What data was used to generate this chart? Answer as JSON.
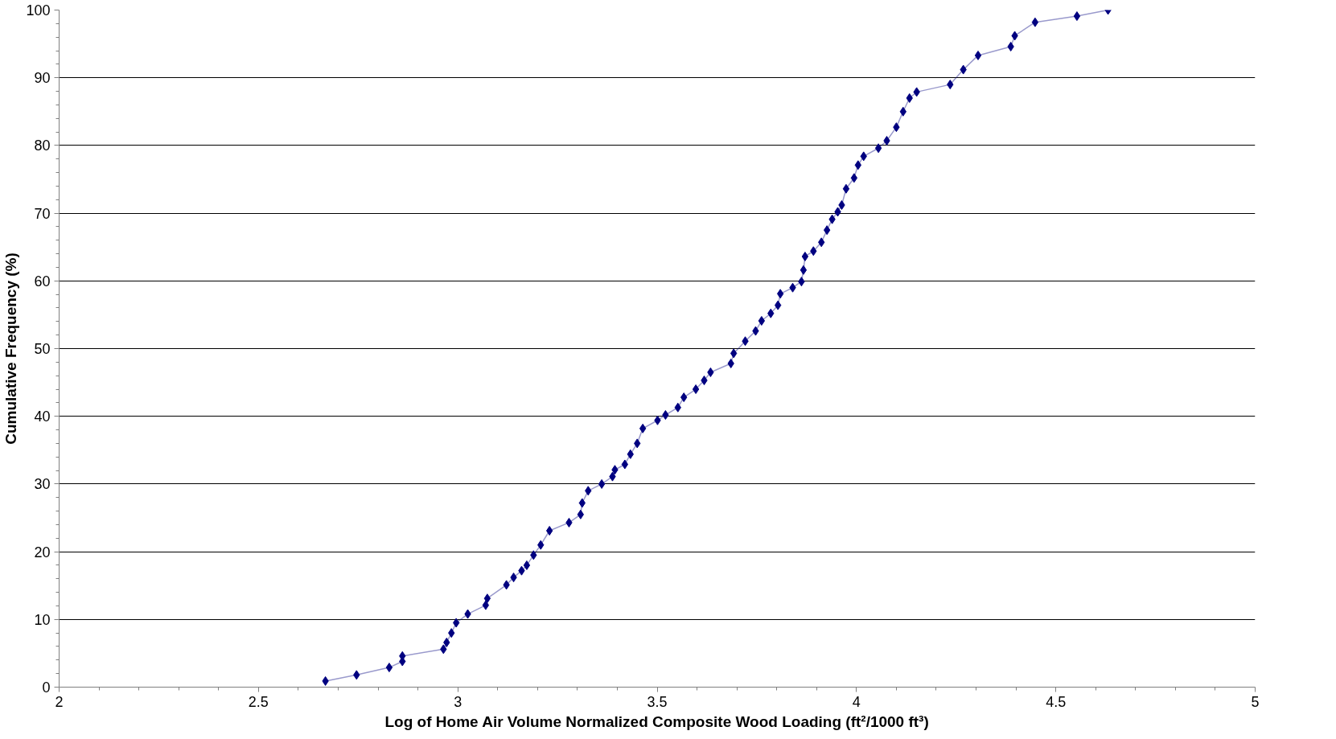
{
  "chart_data": {
    "type": "line",
    "xlabel": "Log of Home Air Volume Normalized Composite Wood Loading (ft²/1000 ft³)",
    "ylabel": "Cumulative Frequency (%)",
    "xlim": [
      2,
      5
    ],
    "ylim": [
      0,
      100
    ],
    "xticks": [
      2,
      2.5,
      3,
      3.5,
      4,
      4.5,
      5
    ],
    "yticks": [
      0,
      10,
      20,
      30,
      40,
      50,
      60,
      70,
      80,
      90,
      100
    ],
    "grid": "y",
    "marker": "diamond",
    "line_style": "solid",
    "series": [
      {
        "color": "#000080",
        "x": [
          2.668,
          2.746,
          2.828,
          2.861,
          2.861,
          2.964,
          2.972,
          2.984,
          2.996,
          3.025,
          3.07,
          3.074,
          3.122,
          3.14,
          3.16,
          3.173,
          3.19,
          3.208,
          3.23,
          3.279,
          3.308,
          3.312,
          3.327,
          3.361,
          3.388,
          3.394,
          3.419,
          3.433,
          3.45,
          3.464,
          3.501,
          3.521,
          3.552,
          3.567,
          3.597,
          3.618,
          3.634,
          3.685,
          3.692,
          3.721,
          3.747,
          3.762,
          3.785,
          3.803,
          3.809,
          3.84,
          3.862,
          3.867,
          3.871,
          3.892,
          3.912,
          3.926,
          3.939,
          3.953,
          3.963,
          3.974,
          3.994,
          4.004,
          4.018,
          4.055,
          4.076,
          4.1,
          4.117,
          4.133,
          4.151,
          4.235,
          4.268,
          4.305,
          4.387,
          4.397,
          4.448,
          4.553,
          4.631
        ],
        "values": [
          0.9,
          1.8,
          2.9,
          3.8,
          4.6,
          5.6,
          6.6,
          8.0,
          9.5,
          10.8,
          12.1,
          13.1,
          15.1,
          16.2,
          17.2,
          18.0,
          19.5,
          21.0,
          23.1,
          24.3,
          25.5,
          27.2,
          29.0,
          30.0,
          31.1,
          32.1,
          32.9,
          34.4,
          36.0,
          38.2,
          39.4,
          40.2,
          41.3,
          42.8,
          44.0,
          45.3,
          46.5,
          47.8,
          49.3,
          51.1,
          52.6,
          54.1,
          55.2,
          56.4,
          58.1,
          59.0,
          59.9,
          61.6,
          63.6,
          64.4,
          65.7,
          67.5,
          69.1,
          70.2,
          71.2,
          73.6,
          75.2,
          77.1,
          78.4,
          79.6,
          80.7,
          82.7,
          85.0,
          87.0,
          87.9,
          89.0,
          91.2,
          93.3,
          94.6,
          96.2,
          98.2,
          99.1,
          100
        ]
      }
    ]
  }
}
